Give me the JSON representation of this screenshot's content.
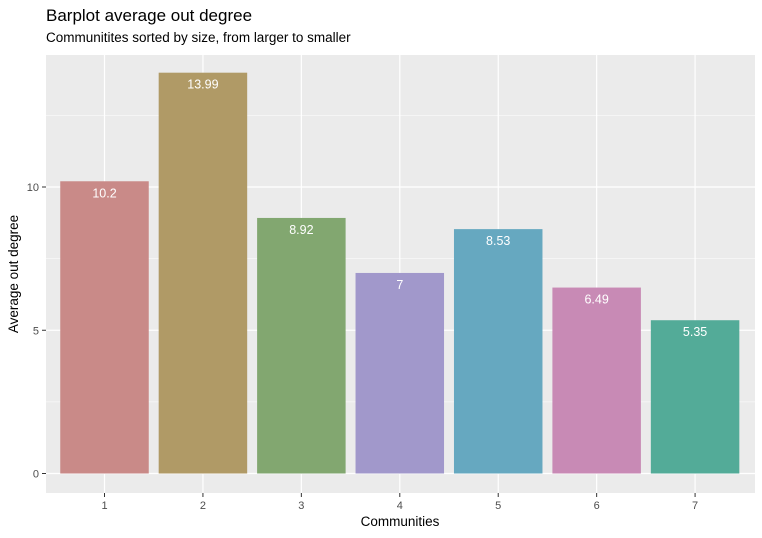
{
  "chart_data": {
    "type": "bar",
    "title": "Barplot average out degree",
    "subtitle": "Communitites sorted by size, from larger to smaller",
    "xlabel": "Communities",
    "ylabel": "Average out degree",
    "categories": [
      "1",
      "2",
      "3",
      "4",
      "5",
      "6",
      "7"
    ],
    "values": [
      10.2,
      13.99,
      8.92,
      7,
      8.53,
      6.49,
      5.35
    ],
    "data_labels": [
      "10.2",
      "13.99",
      "8.92",
      "7",
      "8.53",
      "6.49",
      "5.35"
    ],
    "ylim": [
      0,
      14.7
    ],
    "yticks": [
      0,
      5,
      10
    ],
    "ytick_labels": [
      "0",
      "5",
      "10"
    ],
    "grid": true,
    "colors": [
      "#c98a88",
      "#b09a66",
      "#82a770",
      "#a198cb",
      "#66a8c0",
      "#c88ab5",
      "#53ab98"
    ],
    "panel_background": "#ebebeb",
    "gridline_color": "#ffffff"
  }
}
